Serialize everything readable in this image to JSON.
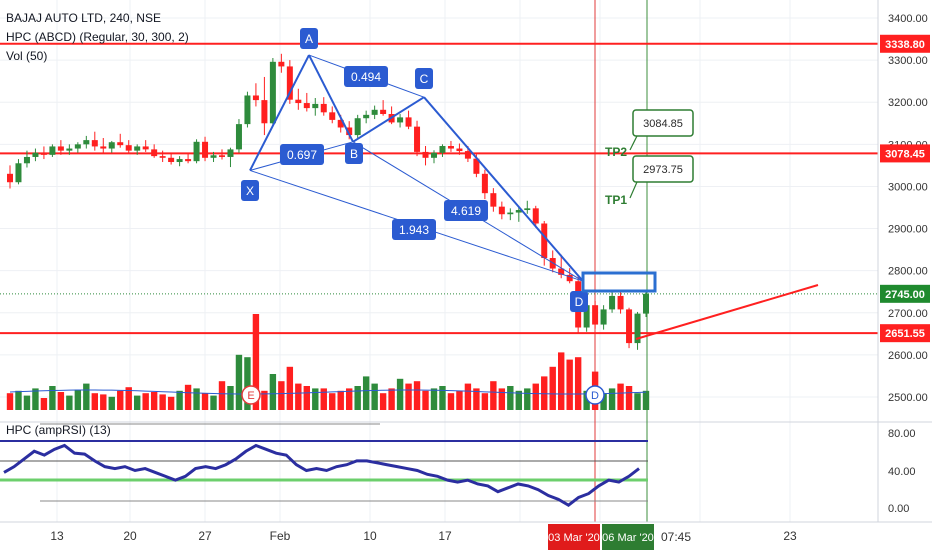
{
  "header": {
    "title": "BAJAJ AUTO LTD, 240, NSE",
    "study1": "HPC (ABCD) (Regular, 30, 300, 2)",
    "study2": "Vol (50)"
  },
  "rsi_panel": {
    "label": "HPC (ampRSI) (13)",
    "axis_ticks": [
      "80.00",
      "40.00",
      "0.00"
    ]
  },
  "colors": {
    "up": "#2e8b3c",
    "down": "#ff1f1f",
    "pattern": "#2b5bd1",
    "rsi_line": "#2b2ea0",
    "level_red": "#ff2020",
    "tp_green": "#2e7d32"
  },
  "chart_data": {
    "type": "candlestick",
    "price_axis_ticks": [
      "3400.00",
      "3300.00",
      "3200.00",
      "3100.00",
      "3000.00",
      "2900.00",
      "2800.00",
      "2700.00",
      "2600.00",
      "2500.00"
    ],
    "price_ylim": [
      2470,
      3430
    ],
    "x_ticks": [
      "13",
      "20",
      "27",
      "Feb",
      "10",
      "17",
      "23"
    ],
    "x_date_flags": [
      "03 Mar '20",
      "06 Mar '20"
    ],
    "x_time_flag": "07:45",
    "levels": [
      {
        "label": "3338.80",
        "value": 3338.8
      },
      {
        "label": "3078.45",
        "value": 3078.45
      },
      {
        "label": "2651.55",
        "value": 2651.55
      }
    ],
    "last_price": {
      "label": "2745.00",
      "value": 2745.0
    },
    "pattern_points": [
      {
        "label": "X",
        "value": 3038
      },
      {
        "label": "A",
        "value": 3312
      },
      {
        "label": "B",
        "value": 3106
      },
      {
        "label": "C",
        "value": 3212
      },
      {
        "label": "D",
        "value": 2775
      }
    ],
    "ratios": [
      "0.494",
      "0.697",
      "1.943",
      "4.619"
    ],
    "targets": [
      {
        "name": "TP2",
        "label": "3084.85",
        "value": 3084.85
      },
      {
        "name": "TP1",
        "label": "2973.75",
        "value": 2973.75
      }
    ],
    "volume_markers": [
      "E",
      "D"
    ],
    "candles": [
      [
        3030,
        3050,
        2995,
        3010
      ],
      [
        3010,
        3065,
        3005,
        3055
      ],
      [
        3055,
        3085,
        3045,
        3070
      ],
      [
        3070,
        3090,
        3060,
        3080
      ],
      [
        3080,
        3095,
        3065,
        3075
      ],
      [
        3075,
        3100,
        3070,
        3095
      ],
      [
        3095,
        3110,
        3075,
        3085
      ],
      [
        3085,
        3100,
        3075,
        3090
      ],
      [
        3090,
        3105,
        3080,
        3100
      ],
      [
        3100,
        3120,
        3090,
        3110
      ],
      [
        3110,
        3130,
        3085,
        3095
      ],
      [
        3095,
        3115,
        3080,
        3090
      ],
      [
        3090,
        3108,
        3080,
        3105
      ],
      [
        3105,
        3125,
        3092,
        3098
      ],
      [
        3098,
        3110,
        3078,
        3085
      ],
      [
        3085,
        3100,
        3075,
        3095
      ],
      [
        3095,
        3110,
        3082,
        3088
      ],
      [
        3088,
        3100,
        3068,
        3072
      ],
      [
        3072,
        3085,
        3058,
        3068
      ],
      [
        3068,
        3080,
        3052,
        3058
      ],
      [
        3058,
        3072,
        3048,
        3065
      ],
      [
        3065,
        3078,
        3055,
        3060
      ],
      [
        3060,
        3112,
        3055,
        3106
      ],
      [
        3106,
        3118,
        3060,
        3068
      ],
      [
        3068,
        3082,
        3058,
        3074
      ],
      [
        3074,
        3088,
        3064,
        3070
      ],
      [
        3070,
        3092,
        3046,
        3088
      ],
      [
        3088,
        3160,
        3080,
        3148
      ],
      [
        3148,
        3225,
        3140,
        3216
      ],
      [
        3216,
        3245,
        3190,
        3205
      ],
      [
        3205,
        3260,
        3122,
        3150
      ],
      [
        3150,
        3305,
        3142,
        3296
      ],
      [
        3296,
        3315,
        3270,
        3285
      ],
      [
        3285,
        3300,
        3196,
        3206
      ],
      [
        3206,
        3232,
        3182,
        3198
      ],
      [
        3198,
        3222,
        3178,
        3186
      ],
      [
        3186,
        3210,
        3168,
        3196
      ],
      [
        3196,
        3212,
        3168,
        3176
      ],
      [
        3176,
        3190,
        3150,
        3158
      ],
      [
        3158,
        3170,
        3128,
        3140
      ],
      [
        3140,
        3155,
        3112,
        3122
      ],
      [
        3122,
        3170,
        3112,
        3162
      ],
      [
        3162,
        3180,
        3150,
        3170
      ],
      [
        3170,
        3192,
        3160,
        3182
      ],
      [
        3182,
        3205,
        3168,
        3172
      ],
      [
        3172,
        3190,
        3148,
        3152
      ],
      [
        3152,
        3172,
        3140,
        3164
      ],
      [
        3164,
        3180,
        3136,
        3142
      ],
      [
        3142,
        3156,
        3072,
        3082
      ],
      [
        3082,
        3096,
        3050,
        3068
      ],
      [
        3068,
        3086,
        3055,
        3080
      ],
      [
        3080,
        3100,
        3070,
        3096
      ],
      [
        3096,
        3108,
        3082,
        3090
      ],
      [
        3090,
        3102,
        3075,
        3084
      ],
      [
        3084,
        3096,
        3058,
        3066
      ],
      [
        3066,
        3076,
        3022,
        3030
      ],
      [
        3030,
        3040,
        2970,
        2984
      ],
      [
        2984,
        2996,
        2940,
        2952
      ],
      [
        2952,
        2964,
        2922,
        2934
      ],
      [
        2934,
        2948,
        2920,
        2938
      ],
      [
        2938,
        2952,
        2916,
        2944
      ],
      [
        2944,
        2966,
        2935,
        2948
      ],
      [
        2948,
        2954,
        2902,
        2912
      ],
      [
        2912,
        2918,
        2812,
        2830
      ],
      [
        2830,
        2848,
        2796,
        2805
      ],
      [
        2805,
        2838,
        2782,
        2790
      ],
      [
        2790,
        2806,
        2770,
        2775
      ],
      [
        2775,
        2786,
        2652,
        2665
      ],
      [
        2665,
        2728,
        2655,
        2718
      ],
      [
        2718,
        2728,
        2662,
        2672
      ],
      [
        2672,
        2718,
        2660,
        2708
      ],
      [
        2708,
        2755,
        2700,
        2740
      ],
      [
        2740,
        2752,
        2698,
        2708
      ],
      [
        2708,
        2712,
        2616,
        2628
      ],
      [
        2628,
        2702,
        2612,
        2698
      ],
      [
        2698,
        2752,
        2690,
        2745
      ]
    ],
    "volumes": [
      14,
      16,
      12,
      18,
      10,
      20,
      15,
      12,
      17,
      22,
      14,
      13,
      11,
      16,
      19,
      12,
      14,
      15,
      13,
      11,
      16,
      21,
      18,
      14,
      12,
      24,
      20,
      46,
      44,
      80,
      16,
      30,
      24,
      36,
      22,
      20,
      18,
      18,
      14,
      16,
      18,
      20,
      28,
      22,
      14,
      18,
      26,
      22,
      24,
      16,
      18,
      20,
      14,
      16,
      22,
      18,
      14,
      24,
      18,
      20,
      16,
      18,
      22,
      28,
      36,
      48,
      42,
      44,
      16,
      32,
      14,
      18,
      22,
      20,
      14,
      16
    ],
    "rsi": [
      38,
      44,
      52,
      60,
      56,
      62,
      66,
      58,
      57,
      50,
      44,
      42,
      44,
      40,
      42,
      38,
      34,
      30,
      34,
      42,
      44,
      42,
      46,
      52,
      60,
      66,
      62,
      58,
      56,
      46,
      40,
      42,
      40,
      44,
      46,
      50,
      50,
      48,
      46,
      44,
      42,
      40,
      36,
      34,
      30,
      28,
      30,
      26,
      24,
      18,
      22,
      26,
      24,
      20,
      14,
      10,
      4,
      12,
      16,
      24,
      30,
      28,
      34,
      42
    ],
    "rsi_ylim": [
      -8,
      92
    ]
  }
}
